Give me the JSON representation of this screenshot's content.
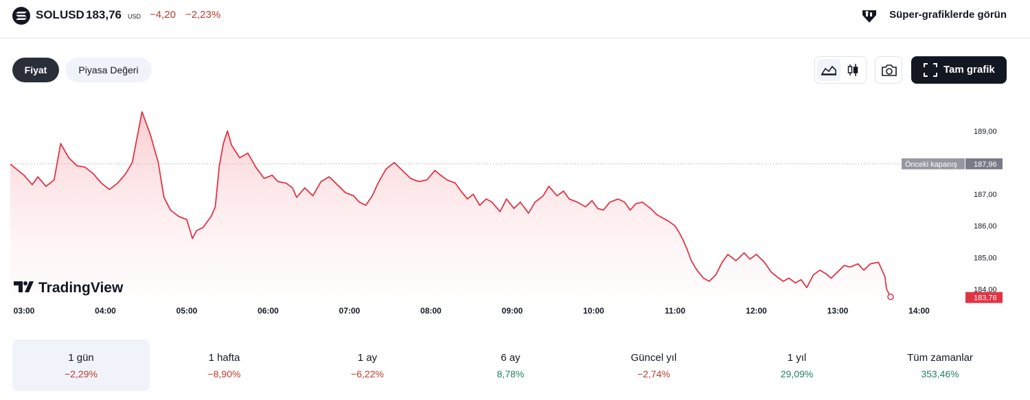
{
  "header": {
    "symbol": "SOLUSD",
    "price": "183,76",
    "currency": "USD",
    "change": "−4,20",
    "change_percent": "−2,23%",
    "super_charts_label": "Süper-grafiklerde görün"
  },
  "tabs": {
    "price": "Fiyat",
    "market_cap": "Piyasa Değeri"
  },
  "toolbar": {
    "fullscreen_label": "Tam grafik"
  },
  "chart_data": {
    "type": "area",
    "x_ticks": [
      "03:00",
      "04:00",
      "05:00",
      "06:00",
      "07:00",
      "08:00",
      "09:00",
      "10:00",
      "11:00",
      "12:00",
      "13:00",
      "14:00"
    ],
    "y_ticks": [
      "189,00",
      "187,00",
      "186,00",
      "185,00",
      "184,00"
    ],
    "y_range": [
      183.6,
      190.1
    ],
    "previous_close": {
      "label": "Önceki kapanış",
      "value": 187.96,
      "display": "187,96"
    },
    "last_value": {
      "value": 183.76,
      "display": "183,76"
    },
    "watermark": "TradingView",
    "line_color": "#e03444",
    "points": [
      [
        2.83,
        187.95
      ],
      [
        3.0,
        187.6
      ],
      [
        3.1,
        187.3
      ],
      [
        3.17,
        187.55
      ],
      [
        3.27,
        187.25
      ],
      [
        3.37,
        187.45
      ],
      [
        3.45,
        188.6
      ],
      [
        3.55,
        188.15
      ],
      [
        3.65,
        187.9
      ],
      [
        3.75,
        187.85
      ],
      [
        3.85,
        187.65
      ],
      [
        3.95,
        187.35
      ],
      [
        4.05,
        187.15
      ],
      [
        4.15,
        187.35
      ],
      [
        4.25,
        187.65
      ],
      [
        4.33,
        188.0
      ],
      [
        4.45,
        189.6
      ],
      [
        4.55,
        188.9
      ],
      [
        4.65,
        188.0
      ],
      [
        4.72,
        186.9
      ],
      [
        4.8,
        186.5
      ],
      [
        4.9,
        186.3
      ],
      [
        5.0,
        186.2
      ],
      [
        5.07,
        185.6
      ],
      [
        5.12,
        185.85
      ],
      [
        5.2,
        185.95
      ],
      [
        5.3,
        186.3
      ],
      [
        5.35,
        186.6
      ],
      [
        5.4,
        187.9
      ],
      [
        5.45,
        188.6
      ],
      [
        5.5,
        189.0
      ],
      [
        5.55,
        188.55
      ],
      [
        5.65,
        188.15
      ],
      [
        5.75,
        188.3
      ],
      [
        5.85,
        187.85
      ],
      [
        5.95,
        187.5
      ],
      [
        6.05,
        187.6
      ],
      [
        6.12,
        187.4
      ],
      [
        6.22,
        187.35
      ],
      [
        6.3,
        187.2
      ],
      [
        6.35,
        186.9
      ],
      [
        6.45,
        187.2
      ],
      [
        6.55,
        186.95
      ],
      [
        6.65,
        187.4
      ],
      [
        6.75,
        187.55
      ],
      [
        6.85,
        187.3
      ],
      [
        6.95,
        187.05
      ],
      [
        7.05,
        186.95
      ],
      [
        7.12,
        186.75
      ],
      [
        7.2,
        186.65
      ],
      [
        7.28,
        186.95
      ],
      [
        7.35,
        187.35
      ],
      [
        7.45,
        187.8
      ],
      [
        7.55,
        188.0
      ],
      [
        7.65,
        187.75
      ],
      [
        7.75,
        187.5
      ],
      [
        7.85,
        187.4
      ],
      [
        7.95,
        187.45
      ],
      [
        8.05,
        187.75
      ],
      [
        8.12,
        187.6
      ],
      [
        8.2,
        187.45
      ],
      [
        8.3,
        187.35
      ],
      [
        8.37,
        187.1
      ],
      [
        8.45,
        186.85
      ],
      [
        8.52,
        187.0
      ],
      [
        8.6,
        186.65
      ],
      [
        8.68,
        186.85
      ],
      [
        8.75,
        186.75
      ],
      [
        8.85,
        186.45
      ],
      [
        8.93,
        186.85
      ],
      [
        9.02,
        186.55
      ],
      [
        9.1,
        186.75
      ],
      [
        9.2,
        186.4
      ],
      [
        9.28,
        186.75
      ],
      [
        9.38,
        186.95
      ],
      [
        9.45,
        187.25
      ],
      [
        9.55,
        186.95
      ],
      [
        9.63,
        187.1
      ],
      [
        9.7,
        186.85
      ],
      [
        9.8,
        186.75
      ],
      [
        9.9,
        186.6
      ],
      [
        9.98,
        186.8
      ],
      [
        10.05,
        186.55
      ],
      [
        10.12,
        186.5
      ],
      [
        10.2,
        186.75
      ],
      [
        10.3,
        186.85
      ],
      [
        10.38,
        186.75
      ],
      [
        10.45,
        186.5
      ],
      [
        10.52,
        186.7
      ],
      [
        10.6,
        186.75
      ],
      [
        10.7,
        186.55
      ],
      [
        10.78,
        186.35
      ],
      [
        10.85,
        186.25
      ],
      [
        10.92,
        186.15
      ],
      [
        11.0,
        186.0
      ],
      [
        11.05,
        185.8
      ],
      [
        11.1,
        185.55
      ],
      [
        11.15,
        185.25
      ],
      [
        11.2,
        184.9
      ],
      [
        11.27,
        184.6
      ],
      [
        11.35,
        184.35
      ],
      [
        11.42,
        184.25
      ],
      [
        11.5,
        184.45
      ],
      [
        11.58,
        184.85
      ],
      [
        11.65,
        185.1
      ],
      [
        11.75,
        184.9
      ],
      [
        11.85,
        185.15
      ],
      [
        11.92,
        184.95
      ],
      [
        12.0,
        185.1
      ],
      [
        12.1,
        184.85
      ],
      [
        12.18,
        184.55
      ],
      [
        12.25,
        184.4
      ],
      [
        12.33,
        184.25
      ],
      [
        12.4,
        184.35
      ],
      [
        12.48,
        184.2
      ],
      [
        12.55,
        184.3
      ],
      [
        12.62,
        184.05
      ],
      [
        12.7,
        184.45
      ],
      [
        12.78,
        184.6
      ],
      [
        12.85,
        184.5
      ],
      [
        12.92,
        184.35
      ],
      [
        13.0,
        184.55
      ],
      [
        13.08,
        184.75
      ],
      [
        13.15,
        184.7
      ],
      [
        13.25,
        184.8
      ],
      [
        13.32,
        184.6
      ],
      [
        13.4,
        184.8
      ],
      [
        13.5,
        184.85
      ],
      [
        13.58,
        184.4
      ],
      [
        13.6,
        184.0
      ],
      [
        13.65,
        183.76
      ]
    ]
  },
  "periods": [
    {
      "label": "1 gün",
      "value": "−2,29%",
      "sign": "neg",
      "active": true
    },
    {
      "label": "1 hafta",
      "value": "−8,90%",
      "sign": "neg",
      "active": false
    },
    {
      "label": "1 ay",
      "value": "−6,22%",
      "sign": "neg",
      "active": false
    },
    {
      "label": "6 ay",
      "value": "8,78%",
      "sign": "pos",
      "active": false
    },
    {
      "label": "Güncel yıl",
      "value": "−2,74%",
      "sign": "neg",
      "active": false
    },
    {
      "label": "1 yıl",
      "value": "29,09%",
      "sign": "pos",
      "active": false
    },
    {
      "label": "Tüm zamanlar",
      "value": "353,46%",
      "sign": "pos",
      "active": false
    }
  ]
}
